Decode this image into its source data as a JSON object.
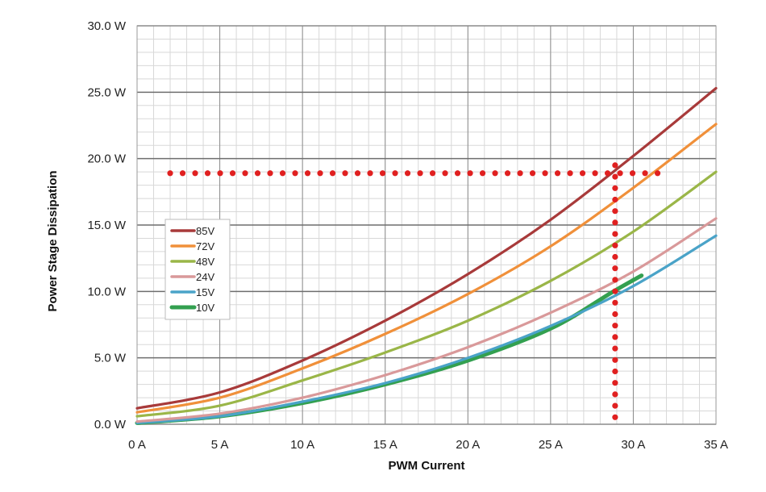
{
  "chart_data": {
    "type": "line",
    "title": "",
    "xlabel": "PWM Current",
    "ylabel": "Power Stage Dissipation",
    "xlim": [
      0,
      35
    ],
    "ylim": [
      0,
      30
    ],
    "x_ticks": [
      0,
      5,
      10,
      15,
      20,
      25,
      30,
      35
    ],
    "x_tick_labels": [
      "0 A",
      "5 A",
      "10 A",
      "15 A",
      "20 A",
      "25 A",
      "30 A",
      "35 A"
    ],
    "y_ticks": [
      0,
      5,
      10,
      15,
      20,
      25,
      30
    ],
    "y_tick_labels": [
      "0.0 W",
      "5.0 W",
      "10.0 W",
      "15.0 W",
      "20.0 W",
      "25.0 W",
      "30.0 W"
    ],
    "grid": true,
    "legend_position": "left-middle",
    "x": [
      0,
      5,
      10,
      15,
      20,
      25,
      30,
      35
    ],
    "series": [
      {
        "name": "85V",
        "color": "#a83a3a",
        "values": [
          1.2,
          2.4,
          4.8,
          7.8,
          11.3,
          15.4,
          20.2,
          25.3
        ]
      },
      {
        "name": "72V",
        "color": "#f0903a",
        "values": [
          0.9,
          2.0,
          4.2,
          6.8,
          9.8,
          13.4,
          17.8,
          22.6
        ]
      },
      {
        "name": "48V",
        "color": "#9ab648",
        "values": [
          0.6,
          1.4,
          3.3,
          5.4,
          7.8,
          10.8,
          14.5,
          19.0
        ]
      },
      {
        "name": "24V",
        "color": "#d9999a",
        "values": [
          0.2,
          0.8,
          2.0,
          3.7,
          5.8,
          8.4,
          11.5,
          15.5
        ]
      },
      {
        "name": "15V",
        "color": "#4aa3c8",
        "values": [
          0.1,
          0.6,
          1.7,
          3.1,
          5.0,
          7.4,
          10.4,
          14.2
        ]
      },
      {
        "name": "10V",
        "color": "#33a050",
        "values": [
          0.1,
          0.6,
          1.6,
          3.0,
          4.8,
          7.2,
          10.0,
          11.2
        ],
        "x": [
          0,
          5,
          10,
          15,
          20,
          25,
          28.8,
          30.5
        ]
      }
    ],
    "annotations": [
      {
        "type": "dotted-hline",
        "color": "#e02020",
        "y": 18.9,
        "x_from": 2,
        "x_to": 32
      },
      {
        "type": "dotted-vline",
        "color": "#e02020",
        "x": 28.9,
        "y_from": 0.5,
        "y_to": 19.5
      }
    ]
  }
}
